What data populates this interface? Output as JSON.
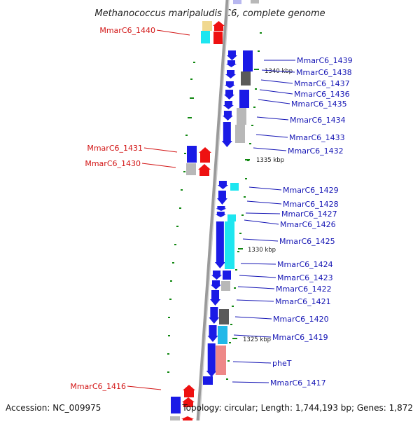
{
  "title": "Methanococcus maripaludis C6, complete genome",
  "footer": {
    "accession": "Accession: NC_009975",
    "summary": "Topology: circular; Length: 1,744,193 bp; Genes: 1,872"
  },
  "colors": {
    "forward_gene": "#1a1ae6",
    "reverse_gene": "#ee1111",
    "cyan_gene": "#1ee6f0",
    "grey_gene": "#b8b8b8",
    "dark_gene": "#5a5a5a",
    "salmon_gene": "#ee8888",
    "khaki_gene": "#f0d890",
    "backbone": "#888888",
    "tick": "#118811",
    "label_blue": "#1414b4",
    "label_red": "#d21414"
  },
  "scale_labels": [
    "1340 kbp",
    "1335 kbp",
    "1330 kbp",
    "1325 kbp"
  ],
  "right_labels": [
    "MmarC6_1439",
    "MmarC6_1438",
    "MmarC6_1437",
    "MmarC6_1436",
    "MmarC6_1435",
    "MmarC6_1434",
    "MmarC6_1433",
    "MmarC6_1432",
    "MmarC6_1429",
    "MmarC6_1428",
    "MmarC6_1427",
    "MmarC6_1426",
    "MmarC6_1425",
    "MmarC6_1424",
    "MmarC6_1423",
    "MmarC6_1422",
    "MmarC6_1421",
    "MmarC6_1420",
    "MmarC6_1419",
    "pheT",
    "MmarC6_1417"
  ],
  "left_labels": [
    "MmarC6_1440",
    "MmarC6_1431",
    "MmarC6_1430",
    "MmarC6_1416"
  ]
}
